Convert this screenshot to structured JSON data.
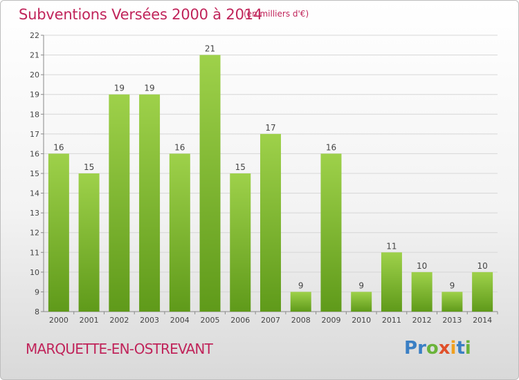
{
  "chart_data": {
    "type": "bar",
    "title": "Subventions Versées 2000 à 2014",
    "subtitle": "(en milliers d'€)",
    "categories": [
      "2000",
      "2001",
      "2002",
      "2003",
      "2004",
      "2005",
      "2006",
      "2007",
      "2008",
      "2009",
      "2010",
      "2011",
      "2012",
      "2013",
      "2014"
    ],
    "values": [
      16,
      15,
      19,
      19,
      16,
      21,
      15,
      17,
      9,
      16,
      9,
      11,
      10,
      9,
      10
    ],
    "ylim": [
      8,
      22
    ],
    "yticks": [
      8,
      9,
      10,
      11,
      12,
      13,
      14,
      15,
      16,
      17,
      18,
      19,
      20,
      21,
      22
    ],
    "xlabel": "",
    "ylabel": "",
    "grid": true,
    "bar_color_top": "#9ed14a",
    "bar_color_bottom": "#5f9a1a"
  },
  "footer": {
    "place": "MARQUETTE-EN-OSTREVANT",
    "logo_letters": [
      {
        "ch": "P",
        "color": "#3a7fc4"
      },
      {
        "ch": "r",
        "color": "#3a7fc4"
      },
      {
        "ch": "o",
        "color": "#6ab33a"
      },
      {
        "ch": "x",
        "color": "#e0502a"
      },
      {
        "ch": "i",
        "color": "#f0a020"
      },
      {
        "ch": "t",
        "color": "#3a7fc4"
      },
      {
        "ch": "i",
        "color": "#6ab33a"
      }
    ]
  }
}
